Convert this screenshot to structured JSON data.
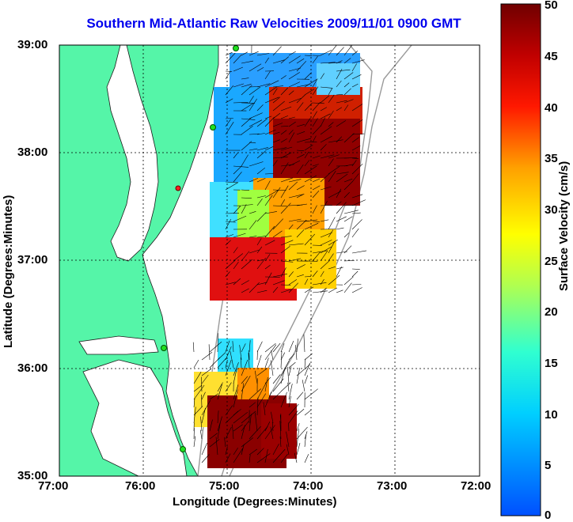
{
  "title": "Southern Mid-Atlantic Raw Velocities 2009/11/01 0900 GMT",
  "x_axis": {
    "label": "Longitude (Degrees:Minutes)",
    "ticks": [
      "77:00",
      "76:00",
      "75:00",
      "74:00",
      "73:00",
      "72:00"
    ]
  },
  "y_axis": {
    "label": "Latitude (Degrees:Minutes)",
    "ticks": [
      "39:00",
      "38:00",
      "37:00",
      "36:00",
      "35:00"
    ]
  },
  "colorbar": {
    "label": "Surface Velocity (cm/s)",
    "ticks": [
      "50",
      "45",
      "40",
      "35",
      "30",
      "25",
      "20",
      "15",
      "10",
      "5",
      "0"
    ],
    "min": 0,
    "max": 50
  },
  "colors": {
    "land": "#55f5a8",
    "water": "#ffffff",
    "bathymetry": "#9a9a9a",
    "title": "#0000ee"
  },
  "map": {
    "lon_range": [
      -77,
      -72
    ],
    "lat_range": [
      35,
      39
    ],
    "grid": true,
    "velocity_field": "surface current vectors over colored speed field",
    "station_markers": [
      "green",
      "green",
      "green",
      "green",
      "red"
    ]
  }
}
